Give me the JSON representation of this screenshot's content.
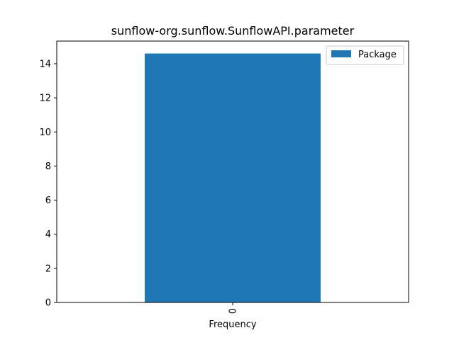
{
  "chart_data": {
    "type": "bar",
    "title": "sunflow-org.sunflow.SunflowAPI.parameter",
    "xlabel": "Frequency",
    "ylabel": "",
    "categories": [
      "0"
    ],
    "series": [
      {
        "name": "Package",
        "values": [
          14.6
        ],
        "color": "#1f77b4"
      }
    ],
    "ylim": [
      0,
      15.33
    ],
    "yticks": [
      0,
      2,
      4,
      6,
      8,
      10,
      12,
      14
    ],
    "ytick_labels": [
      "0",
      "2",
      "4",
      "6",
      "8",
      "10",
      "12",
      "14"
    ],
    "grid": false,
    "legend_position": "upper-right"
  }
}
